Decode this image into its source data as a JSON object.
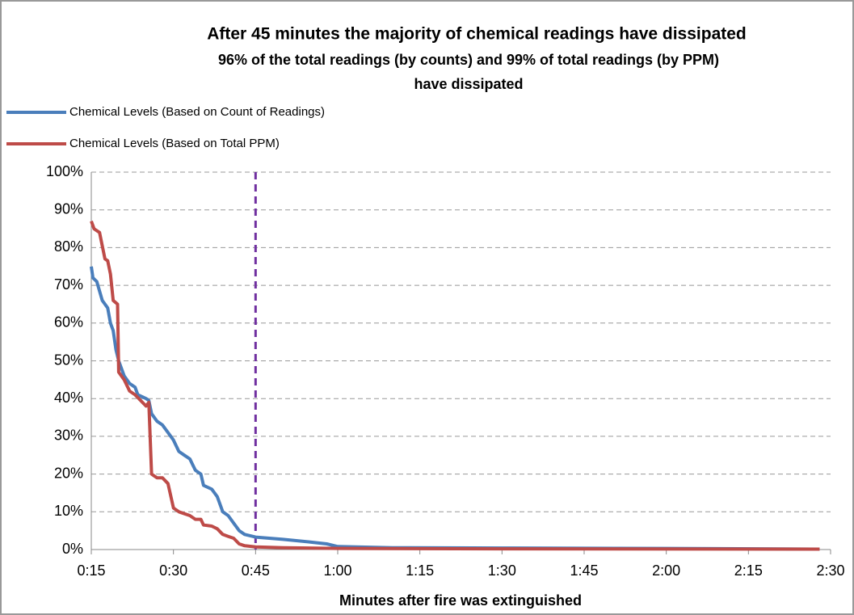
{
  "chart_data": {
    "type": "line",
    "title": "After 45 minutes the majority of chemical readings have dissipated",
    "subtitle": [
      "96% of the total readings (by counts) and 99% of total readings (by PPM)",
      "have dissipated"
    ],
    "x_label": "Minutes after fire was extinguished",
    "xlim": [
      15,
      150
    ],
    "xticks": [
      {
        "value": 15,
        "label": "0:15"
      },
      {
        "value": 30,
        "label": "0:30"
      },
      {
        "value": 45,
        "label": "0:45"
      },
      {
        "value": 60,
        "label": "1:00"
      },
      {
        "value": 75,
        "label": "1:15"
      },
      {
        "value": 90,
        "label": "1:30"
      },
      {
        "value": 105,
        "label": "1:45"
      },
      {
        "value": 120,
        "label": "2:00"
      },
      {
        "value": 135,
        "label": "2:15"
      },
      {
        "value": 150,
        "label": "2:30"
      }
    ],
    "ylim": [
      0,
      100
    ],
    "yticks": [
      {
        "value": 0,
        "label": "0%"
      },
      {
        "value": 10,
        "label": "10%"
      },
      {
        "value": 20,
        "label": "20%"
      },
      {
        "value": 30,
        "label": "30%"
      },
      {
        "value": 40,
        "label": "40%"
      },
      {
        "value": 50,
        "label": "50%"
      },
      {
        "value": 60,
        "label": "60%"
      },
      {
        "value": 70,
        "label": "70%"
      },
      {
        "value": 80,
        "label": "80%"
      },
      {
        "value": 90,
        "label": "90%"
      },
      {
        "value": 100,
        "label": "100%"
      }
    ],
    "grid": true,
    "reference_x": 45,
    "reference_color": "#7030a0",
    "legend_position": "top-left",
    "series": [
      {
        "name": "Chemical Levels (Based on Count of Readings)",
        "color": "#4a7ebb",
        "x": [
          15,
          15.3,
          16,
          17,
          18,
          18.5,
          19,
          19.5,
          20,
          21,
          22,
          23,
          23.5,
          25,
          25.5,
          26,
          27,
          28,
          29,
          30,
          31,
          32,
          33,
          34,
          35,
          35.5,
          37,
          38,
          39,
          40,
          41,
          42,
          43,
          45,
          50,
          55,
          58,
          60,
          70,
          90,
          120,
          148
        ],
        "values": [
          75,
          72,
          71,
          66,
          64,
          60,
          58,
          53,
          50,
          46,
          44,
          43,
          41,
          40,
          39.5,
          36,
          34,
          33,
          31,
          29,
          26,
          25,
          24,
          21,
          20,
          17,
          16,
          14,
          10,
          9,
          7,
          5,
          4,
          3.3,
          2.7,
          2,
          1.5,
          0.8,
          0.5,
          0.4,
          0.3,
          0.1
        ]
      },
      {
        "name": "Chemical Levels (Based on Total PPM)",
        "color": "#be4b48",
        "x": [
          15,
          15.5,
          16.5,
          17.5,
          18,
          18.5,
          19,
          19.8,
          20,
          21,
          22,
          23,
          25,
          25.5,
          26,
          27,
          28,
          29,
          30,
          31,
          33,
          34,
          35,
          35.5,
          37,
          38,
          39,
          40,
          41,
          42,
          43,
          45,
          50,
          60,
          90,
          148
        ],
        "values": [
          87,
          85,
          84,
          77,
          76.5,
          73,
          66,
          65,
          47,
          45,
          42,
          41,
          38,
          39,
          20,
          19,
          19,
          17.5,
          11,
          10,
          9,
          8,
          8,
          6.5,
          6.2,
          5.5,
          4,
          3.5,
          3,
          1.5,
          1,
          0.7,
          0.5,
          0.3,
          0.2,
          0.1
        ]
      }
    ]
  }
}
